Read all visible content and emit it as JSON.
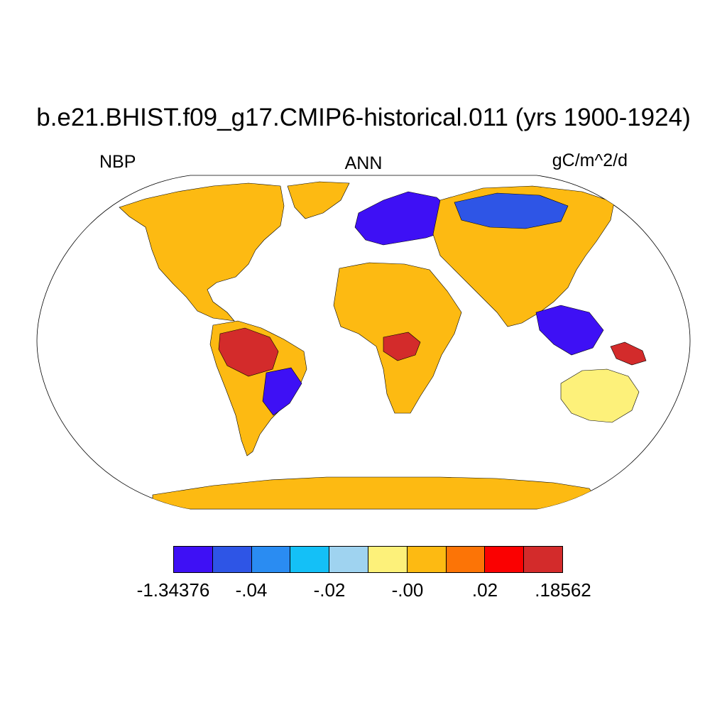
{
  "title": "b.e21.BHIST.f09_g17.CMIP6-historical.011 (yrs 1900-1924)",
  "left_label": "NBP",
  "center_label": "ANN",
  "right_label": "gC/m^2/d",
  "map": {
    "projection": "Robinson",
    "field": "NBP",
    "land_background_class": 6,
    "regions": [
      {
        "name": "north-america",
        "class": 6
      },
      {
        "name": "greenland",
        "class": 6
      },
      {
        "name": "south-america",
        "class": 6
      },
      {
        "name": "amazon",
        "class": 9
      },
      {
        "name": "eastern-south-america",
        "class": 0
      },
      {
        "name": "europe",
        "class": 0
      },
      {
        "name": "africa",
        "class": 6
      },
      {
        "name": "central-africa",
        "class": 9
      },
      {
        "name": "asia",
        "class": 6
      },
      {
        "name": "siberia",
        "class": 1
      },
      {
        "name": "southeast-asia",
        "class": 0
      },
      {
        "name": "australia",
        "class": 5
      },
      {
        "name": "new-guinea",
        "class": 9
      },
      {
        "name": "antarctica",
        "class": 6
      }
    ]
  },
  "colorbar": {
    "colors": [
      "#3e10f5",
      "#2e55e6",
      "#2a8cf2",
      "#14c0f7",
      "#9fd3f0",
      "#fdf17a",
      "#fdba12",
      "#fc7406",
      "#fa0101",
      "#d32b2b"
    ],
    "labels": [
      "-1.34376",
      "-.04",
      "-.02",
      "-.00",
      ".02",
      ".18562"
    ]
  }
}
